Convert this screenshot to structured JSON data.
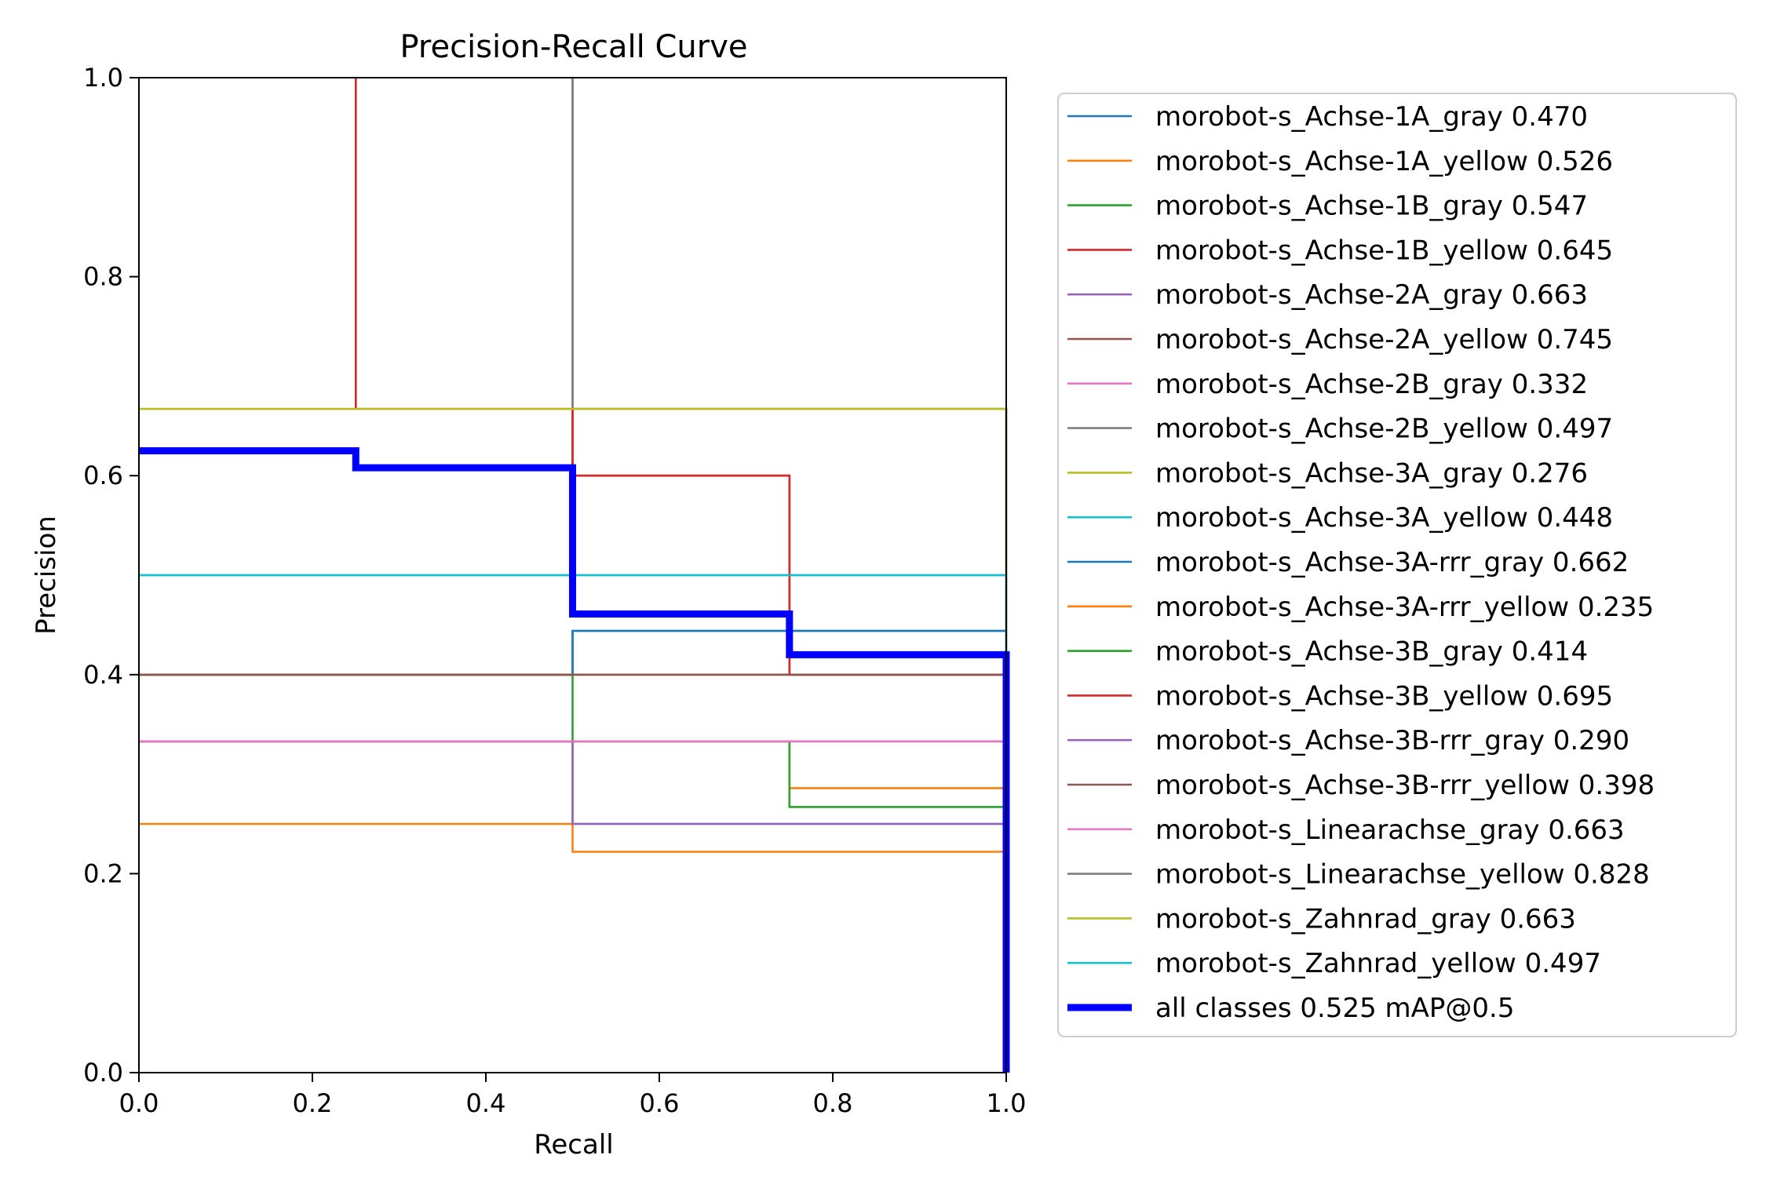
{
  "chart_data": {
    "type": "line",
    "title": "Precision-Recall Curve",
    "xlabel": "Recall",
    "ylabel": "Precision",
    "xlim": [
      0,
      1
    ],
    "ylim": [
      0,
      1
    ],
    "xticks": [
      "0.0",
      "0.2",
      "0.4",
      "0.6",
      "0.8",
      "1.0"
    ],
    "yticks": [
      "0.0",
      "0.2",
      "0.4",
      "0.6",
      "0.8",
      "1.0"
    ],
    "legend_position": "outside right",
    "series": [
      {
        "name": "morobot-s_Achse-1A_gray 0.470",
        "color": "#1f77b4",
        "points": [
          [
            0,
            0.4
          ],
          [
            0.5,
            0.4
          ],
          [
            0.5,
            0.444
          ],
          [
            1,
            0.444
          ],
          [
            1,
            0
          ]
        ]
      },
      {
        "name": "morobot-s_Achse-1A_yellow 0.526",
        "color": "#ff7f0e",
        "points": [
          [
            0,
            0.25
          ],
          [
            0.5,
            0.25
          ],
          [
            0.5,
            0.222
          ],
          [
            1,
            0.222
          ],
          [
            1,
            0
          ]
        ]
      },
      {
        "name": "morobot-s_Achse-1B_gray 0.547",
        "color": "#2ca02c",
        "points": [
          [
            0,
            0.4
          ],
          [
            0.5,
            0.4
          ],
          [
            0.5,
            0.333
          ],
          [
            1,
            0.333
          ],
          [
            1,
            0
          ]
        ]
      },
      {
        "name": "morobot-s_Achse-1B_yellow 0.645",
        "color": "#d62728",
        "points": [
          [
            0.25,
            1
          ],
          [
            0.25,
            0.667
          ],
          [
            0.5,
            0.667
          ],
          [
            0.5,
            0.6
          ],
          [
            0.75,
            0.6
          ],
          [
            0.75,
            0.4
          ],
          [
            1,
            0.4
          ],
          [
            1,
            0
          ]
        ]
      },
      {
        "name": "morobot-s_Achse-2A_gray 0.663",
        "color": "#9467bd",
        "points": [
          [
            0,
            0.333
          ],
          [
            0.5,
            0.333
          ],
          [
            0.5,
            0.25
          ],
          [
            1,
            0.25
          ],
          [
            1,
            0
          ]
        ]
      },
      {
        "name": "morobot-s_Achse-2A_yellow 0.745",
        "color": "#8c564b",
        "points": [
          [
            0,
            0.4
          ],
          [
            1,
            0.4
          ],
          [
            1,
            0
          ]
        ]
      },
      {
        "name": "morobot-s_Achse-2B_gray 0.332",
        "color": "#e377c2",
        "points": [
          [
            0,
            0.333
          ],
          [
            1,
            0.333
          ],
          [
            1,
            0
          ]
        ]
      },
      {
        "name": "morobot-s_Achse-2B_yellow 0.497",
        "color": "#7f7f7f",
        "points": [
          [
            0.5,
            1
          ],
          [
            0.5,
            0.667
          ],
          [
            1,
            0.667
          ],
          [
            1,
            0
          ]
        ]
      },
      {
        "name": "morobot-s_Achse-3A_gray 0.276",
        "color": "#bcbd22",
        "points": [
          [
            0,
            0.667
          ],
          [
            1,
            0.667
          ],
          [
            1,
            0
          ]
        ]
      },
      {
        "name": "morobot-s_Achse-3A_yellow 0.448",
        "color": "#17becf",
        "points": [
          [
            0,
            0.5
          ],
          [
            1,
            0.5
          ],
          [
            1,
            0
          ]
        ]
      },
      {
        "name": "morobot-s_Achse-3A-rrr_gray 0.662",
        "color": "#1f77b4",
        "points": [
          [
            0,
            0.4
          ],
          [
            0.5,
            0.4
          ],
          [
            0.5,
            0.444
          ],
          [
            1,
            0.444
          ],
          [
            1,
            0
          ]
        ]
      },
      {
        "name": "morobot-s_Achse-3A-rrr_yellow 0.235",
        "color": "#ff7f0e",
        "points": [
          [
            0,
            0.333
          ],
          [
            0.75,
            0.333
          ],
          [
            0.75,
            0.286
          ],
          [
            1,
            0.286
          ],
          [
            1,
            0
          ]
        ]
      },
      {
        "name": "morobot-s_Achse-3B_gray 0.414",
        "color": "#2ca02c",
        "points": [
          [
            0,
            0.333
          ],
          [
            0.75,
            0.333
          ],
          [
            0.75,
            0.267
          ],
          [
            1,
            0.267
          ],
          [
            1,
            0
          ]
        ]
      },
      {
        "name": "morobot-s_Achse-3B_yellow 0.695",
        "color": "#d62728",
        "points": [
          [
            0.5,
            0.667
          ],
          [
            0.5,
            0.6
          ],
          [
            0.75,
            0.6
          ],
          [
            0.75,
            0.4
          ],
          [
            1,
            0.4
          ],
          [
            1,
            0
          ]
        ]
      },
      {
        "name": "morobot-s_Achse-3B-rrr_gray 0.290",
        "color": "#9467bd",
        "points": [
          [
            0,
            0.333
          ],
          [
            0.5,
            0.333
          ],
          [
            0.5,
            0.25
          ],
          [
            1,
            0.25
          ],
          [
            1,
            0
          ]
        ]
      },
      {
        "name": "morobot-s_Achse-3B-rrr_yellow 0.398",
        "color": "#8c564b",
        "points": [
          [
            0,
            0.4
          ],
          [
            1,
            0.4
          ],
          [
            1,
            0
          ]
        ]
      },
      {
        "name": "morobot-s_Linearachse_gray 0.663",
        "color": "#e377c2",
        "points": [
          [
            0,
            0.333
          ],
          [
            1,
            0.333
          ],
          [
            1,
            0
          ]
        ]
      },
      {
        "name": "morobot-s_Linearachse_yellow 0.828",
        "color": "#7f7f7f",
        "points": [
          [
            0.5,
            1
          ],
          [
            0.5,
            0.667
          ],
          [
            1,
            0.667
          ],
          [
            1,
            0
          ]
        ]
      },
      {
        "name": "morobot-s_Zahnrad_gray 0.663",
        "color": "#bcbd22",
        "points": [
          [
            0,
            0.667
          ],
          [
            1,
            0.667
          ],
          [
            1,
            0
          ]
        ]
      },
      {
        "name": "morobot-s_Zahnrad_yellow 0.497",
        "color": "#17becf",
        "points": [
          [
            0,
            0.5
          ],
          [
            1,
            0.5
          ],
          [
            1,
            0
          ]
        ]
      },
      {
        "name": "all classes 0.525 mAP@0.5",
        "color": "#0000ff",
        "bold": true,
        "points": [
          [
            0,
            0.625
          ],
          [
            0.25,
            0.625
          ],
          [
            0.25,
            0.608
          ],
          [
            0.5,
            0.608
          ],
          [
            0.5,
            0.461
          ],
          [
            0.75,
            0.461
          ],
          [
            0.75,
            0.42
          ],
          [
            1,
            0.42
          ],
          [
            1,
            0
          ]
        ]
      }
    ]
  }
}
